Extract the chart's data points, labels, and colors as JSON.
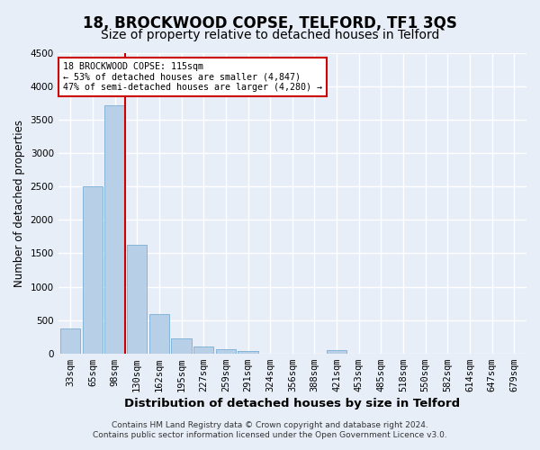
{
  "title": "18, BROCKWOOD COPSE, TELFORD, TF1 3QS",
  "subtitle": "Size of property relative to detached houses in Telford",
  "xlabel": "Distribution of detached houses by size in Telford",
  "ylabel": "Number of detached properties",
  "categories": [
    "33sqm",
    "65sqm",
    "98sqm",
    "130sqm",
    "162sqm",
    "195sqm",
    "227sqm",
    "259sqm",
    "291sqm",
    "324sqm",
    "356sqm",
    "388sqm",
    "421sqm",
    "453sqm",
    "485sqm",
    "518sqm",
    "550sqm",
    "582sqm",
    "614sqm",
    "647sqm",
    "679sqm"
  ],
  "values": [
    370,
    2510,
    3720,
    1630,
    590,
    230,
    100,
    60,
    35,
    0,
    0,
    0,
    55,
    0,
    0,
    0,
    0,
    0,
    0,
    0,
    0
  ],
  "bar_color": "#b8cfe8",
  "bar_edge_color": "#7aaed4",
  "vline_color": "#cc0000",
  "annotation_text": "18 BROCKWOOD COPSE: 115sqm\n← 53% of detached houses are smaller (4,847)\n47% of semi-detached houses are larger (4,280) →",
  "annotation_box_color": "#cc0000",
  "ylim": [
    0,
    4500
  ],
  "yticks": [
    0,
    500,
    1000,
    1500,
    2000,
    2500,
    3000,
    3500,
    4000,
    4500
  ],
  "footer1": "Contains HM Land Registry data © Crown copyright and database right 2024.",
  "footer2": "Contains public sector information licensed under the Open Government Licence v3.0.",
  "background_color": "#e8eef8",
  "plot_bg_color": "#e8eef8",
  "grid_color": "#ffffff",
  "title_fontsize": 12,
  "subtitle_fontsize": 10,
  "xlabel_fontsize": 9.5,
  "ylabel_fontsize": 8.5,
  "tick_fontsize": 7.5,
  "footer_fontsize": 6.5
}
